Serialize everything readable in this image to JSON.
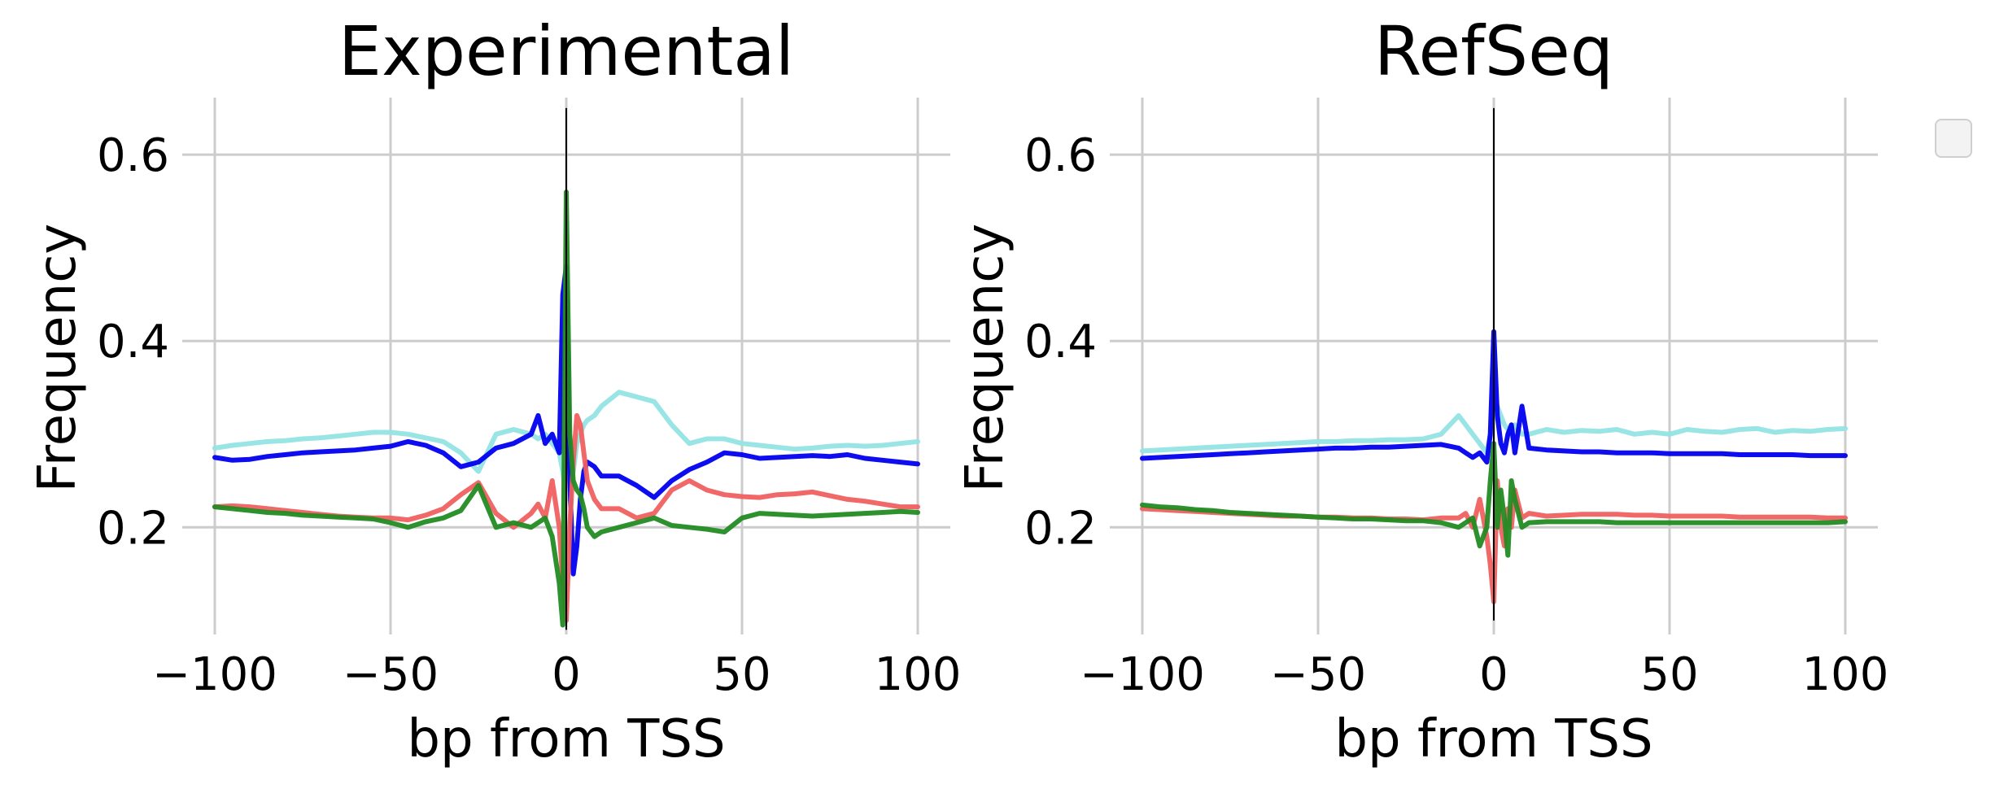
{
  "figure": {
    "background": "#ffffff",
    "legend_empty": true
  },
  "chart_data": [
    {
      "type": "line",
      "title": "Experimental",
      "xlabel": "bp from TSS",
      "ylabel": "Frequency",
      "xlim": [
        -100,
        100
      ],
      "ylim": [
        0.085,
        0.67
      ],
      "xticks": [
        -100,
        -50,
        0,
        50,
        100
      ],
      "xtick_labels": [
        "−100",
        "−50",
        "0",
        "50",
        "100"
      ],
      "yticks": [
        0.2,
        0.4,
        0.6
      ],
      "ytick_labels": [
        "0.2",
        "0.4",
        "0.6"
      ],
      "grid": true,
      "vline": {
        "x": 0,
        "y_range": [
          0.09,
          0.65
        ],
        "color": "#000000"
      },
      "x": [
        -100,
        -95,
        -90,
        -85,
        -80,
        -75,
        -70,
        -65,
        -60,
        -55,
        -50,
        -45,
        -40,
        -35,
        -30,
        -25,
        -20,
        -15,
        -10,
        -8,
        -6,
        -4,
        -2,
        -1,
        0,
        1,
        2,
        3,
        4,
        5,
        6,
        8,
        10,
        15,
        20,
        25,
        30,
        35,
        40,
        45,
        50,
        55,
        60,
        65,
        70,
        75,
        80,
        85,
        90,
        95,
        100
      ],
      "series": [
        {
          "color": "#94e3e3",
          "values": [
            0.285,
            0.288,
            0.29,
            0.292,
            0.293,
            0.295,
            0.296,
            0.298,
            0.3,
            0.302,
            0.302,
            0.3,
            0.296,
            0.292,
            0.28,
            0.26,
            0.3,
            0.305,
            0.3,
            0.295,
            0.3,
            0.29,
            0.28,
            0.26,
            0.23,
            0.24,
            0.26,
            0.29,
            0.3,
            0.31,
            0.315,
            0.32,
            0.33,
            0.345,
            0.34,
            0.335,
            0.31,
            0.29,
            0.295,
            0.295,
            0.29,
            0.288,
            0.286,
            0.284,
            0.285,
            0.287,
            0.288,
            0.287,
            0.288,
            0.29,
            0.292
          ]
        },
        {
          "color": "#0000ee",
          "values": [
            0.275,
            0.272,
            0.273,
            0.276,
            0.278,
            0.28,
            0.281,
            0.282,
            0.283,
            0.285,
            0.287,
            0.292,
            0.288,
            0.28,
            0.265,
            0.27,
            0.285,
            0.29,
            0.3,
            0.32,
            0.29,
            0.3,
            0.28,
            0.45,
            0.48,
            0.25,
            0.15,
            0.18,
            0.23,
            0.26,
            0.27,
            0.265,
            0.255,
            0.255,
            0.245,
            0.232,
            0.25,
            0.262,
            0.27,
            0.28,
            0.278,
            0.274,
            0.275,
            0.276,
            0.277,
            0.276,
            0.278,
            0.274,
            0.272,
            0.27,
            0.268
          ]
        },
        {
          "color": "#f06060",
          "values": [
            0.222,
            0.223,
            0.222,
            0.22,
            0.218,
            0.216,
            0.214,
            0.212,
            0.211,
            0.21,
            0.21,
            0.208,
            0.213,
            0.22,
            0.235,
            0.248,
            0.215,
            0.2,
            0.215,
            0.225,
            0.21,
            0.25,
            0.2,
            0.14,
            0.1,
            0.2,
            0.27,
            0.32,
            0.31,
            0.28,
            0.25,
            0.23,
            0.22,
            0.22,
            0.21,
            0.215,
            0.24,
            0.25,
            0.24,
            0.235,
            0.233,
            0.232,
            0.235,
            0.236,
            0.238,
            0.234,
            0.23,
            0.228,
            0.225,
            0.222,
            0.222
          ]
        },
        {
          "color": "#228b22",
          "values": [
            0.222,
            0.22,
            0.218,
            0.216,
            0.215,
            0.213,
            0.212,
            0.211,
            0.21,
            0.209,
            0.205,
            0.2,
            0.206,
            0.21,
            0.218,
            0.245,
            0.2,
            0.205,
            0.2,
            0.205,
            0.21,
            0.19,
            0.14,
            0.095,
            0.56,
            0.3,
            0.25,
            0.24,
            0.235,
            0.22,
            0.2,
            0.19,
            0.195,
            0.2,
            0.205,
            0.21,
            0.202,
            0.2,
            0.198,
            0.195,
            0.21,
            0.215,
            0.214,
            0.213,
            0.212,
            0.213,
            0.214,
            0.215,
            0.216,
            0.217,
            0.216
          ]
        }
      ]
    },
    {
      "type": "line",
      "title": "RefSeq",
      "xlabel": "bp from TSS",
      "ylabel": "Frequency",
      "xlim": [
        -100,
        100
      ],
      "ylim": [
        0.085,
        0.67
      ],
      "xticks": [
        -100,
        -50,
        0,
        50,
        100
      ],
      "xtick_labels": [
        "−100",
        "−50",
        "0",
        "50",
        "100"
      ],
      "yticks": [
        0.2,
        0.4,
        0.6
      ],
      "ytick_labels": [
        "0.2",
        "0.4",
        "0.6"
      ],
      "grid": true,
      "vline": {
        "x": 0,
        "y_range": [
          0.1,
          0.65
        ],
        "color": "#000000"
      },
      "x": [
        -100,
        -95,
        -90,
        -85,
        -80,
        -75,
        -70,
        -65,
        -60,
        -55,
        -50,
        -45,
        -40,
        -35,
        -30,
        -25,
        -20,
        -15,
        -10,
        -8,
        -6,
        -4,
        -2,
        -1,
        0,
        1,
        2,
        3,
        4,
        5,
        6,
        8,
        10,
        15,
        20,
        25,
        30,
        35,
        40,
        45,
        50,
        55,
        60,
        65,
        70,
        75,
        80,
        85,
        90,
        95,
        100
      ],
      "series": [
        {
          "color": "#94e3e3",
          "values": [
            0.282,
            0.283,
            0.284,
            0.285,
            0.286,
            0.287,
            0.288,
            0.289,
            0.29,
            0.291,
            0.292,
            0.292,
            0.293,
            0.293,
            0.294,
            0.294,
            0.295,
            0.3,
            0.32,
            0.31,
            0.3,
            0.29,
            0.28,
            0.3,
            0.32,
            0.33,
            0.32,
            0.31,
            0.305,
            0.3,
            0.31,
            0.3,
            0.3,
            0.305,
            0.302,
            0.304,
            0.303,
            0.305,
            0.3,
            0.302,
            0.3,
            0.305,
            0.303,
            0.302,
            0.305,
            0.306,
            0.302,
            0.304,
            0.303,
            0.305,
            0.306
          ]
        },
        {
          "color": "#0000ee",
          "values": [
            0.274,
            0.275,
            0.276,
            0.277,
            0.278,
            0.279,
            0.28,
            0.281,
            0.282,
            0.283,
            0.284,
            0.285,
            0.285,
            0.286,
            0.286,
            0.287,
            0.288,
            0.289,
            0.285,
            0.28,
            0.275,
            0.28,
            0.27,
            0.3,
            0.41,
            0.32,
            0.29,
            0.28,
            0.3,
            0.31,
            0.28,
            0.33,
            0.285,
            0.283,
            0.282,
            0.281,
            0.281,
            0.28,
            0.28,
            0.28,
            0.279,
            0.279,
            0.279,
            0.279,
            0.278,
            0.278,
            0.278,
            0.278,
            0.277,
            0.277,
            0.277
          ]
        },
        {
          "color": "#f06060",
          "values": [
            0.22,
            0.219,
            0.218,
            0.217,
            0.216,
            0.215,
            0.214,
            0.213,
            0.212,
            0.212,
            0.211,
            0.211,
            0.21,
            0.21,
            0.209,
            0.209,
            0.208,
            0.21,
            0.21,
            0.215,
            0.2,
            0.23,
            0.19,
            0.16,
            0.12,
            0.25,
            0.2,
            0.18,
            0.22,
            0.2,
            0.24,
            0.21,
            0.215,
            0.212,
            0.213,
            0.214,
            0.214,
            0.214,
            0.213,
            0.213,
            0.212,
            0.212,
            0.212,
            0.212,
            0.211,
            0.211,
            0.211,
            0.211,
            0.211,
            0.21,
            0.21
          ]
        },
        {
          "color": "#228b22",
          "values": [
            0.224,
            0.222,
            0.221,
            0.219,
            0.218,
            0.216,
            0.215,
            0.214,
            0.213,
            0.212,
            0.211,
            0.21,
            0.209,
            0.209,
            0.208,
            0.207,
            0.207,
            0.205,
            0.2,
            0.205,
            0.21,
            0.18,
            0.2,
            0.25,
            0.29,
            0.2,
            0.24,
            0.21,
            0.17,
            0.25,
            0.23,
            0.2,
            0.205,
            0.206,
            0.206,
            0.206,
            0.206,
            0.205,
            0.205,
            0.205,
            0.205,
            0.205,
            0.205,
            0.205,
            0.205,
            0.205,
            0.205,
            0.205,
            0.205,
            0.205,
            0.206
          ]
        }
      ]
    }
  ]
}
